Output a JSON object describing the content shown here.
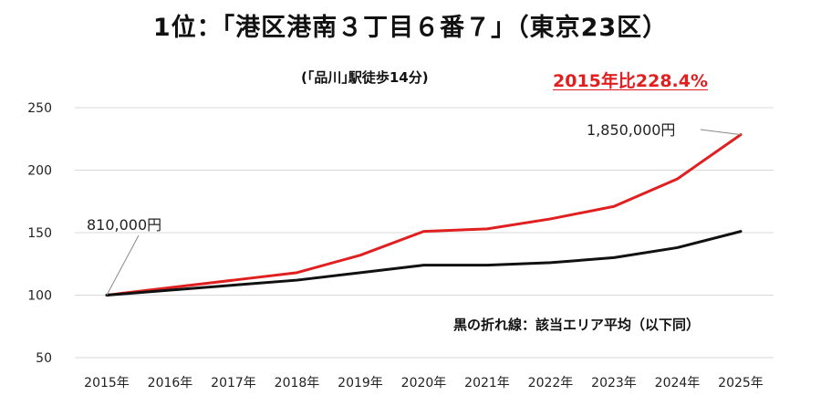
{
  "chart_data": {
    "type": "line",
    "title": "1位：｢港区港南３丁目６番７｣（東京23区）",
    "subtitle": "(｢品川｣駅徒歩14分)",
    "highlight": "2015年比228.4%",
    "note": "黒の折れ線：該当エリア平均（以下同）",
    "categories": [
      "2015年",
      "2016年",
      "2017年",
      "2018年",
      "2019年",
      "2020年",
      "2021年",
      "2022年",
      "2023年",
      "2024年",
      "2025年"
    ],
    "y_ticks": [
      50,
      100,
      150,
      200,
      250
    ],
    "ylim": [
      50,
      250
    ],
    "grid": true,
    "series": [
      {
        "color": "#e02020",
        "values": [
          100,
          106,
          112,
          118,
          132,
          151,
          153,
          161,
          171,
          193,
          228.4
        ]
      },
      {
        "color": "#111111",
        "values": [
          100,
          104,
          108,
          112,
          118,
          124,
          124,
          126,
          130,
          138,
          151
        ]
      }
    ],
    "annotations": [
      {
        "text": "810,000円",
        "series": 0,
        "index": 0
      },
      {
        "text": "1,850,000円",
        "series": 0,
        "index": 10
      }
    ]
  }
}
